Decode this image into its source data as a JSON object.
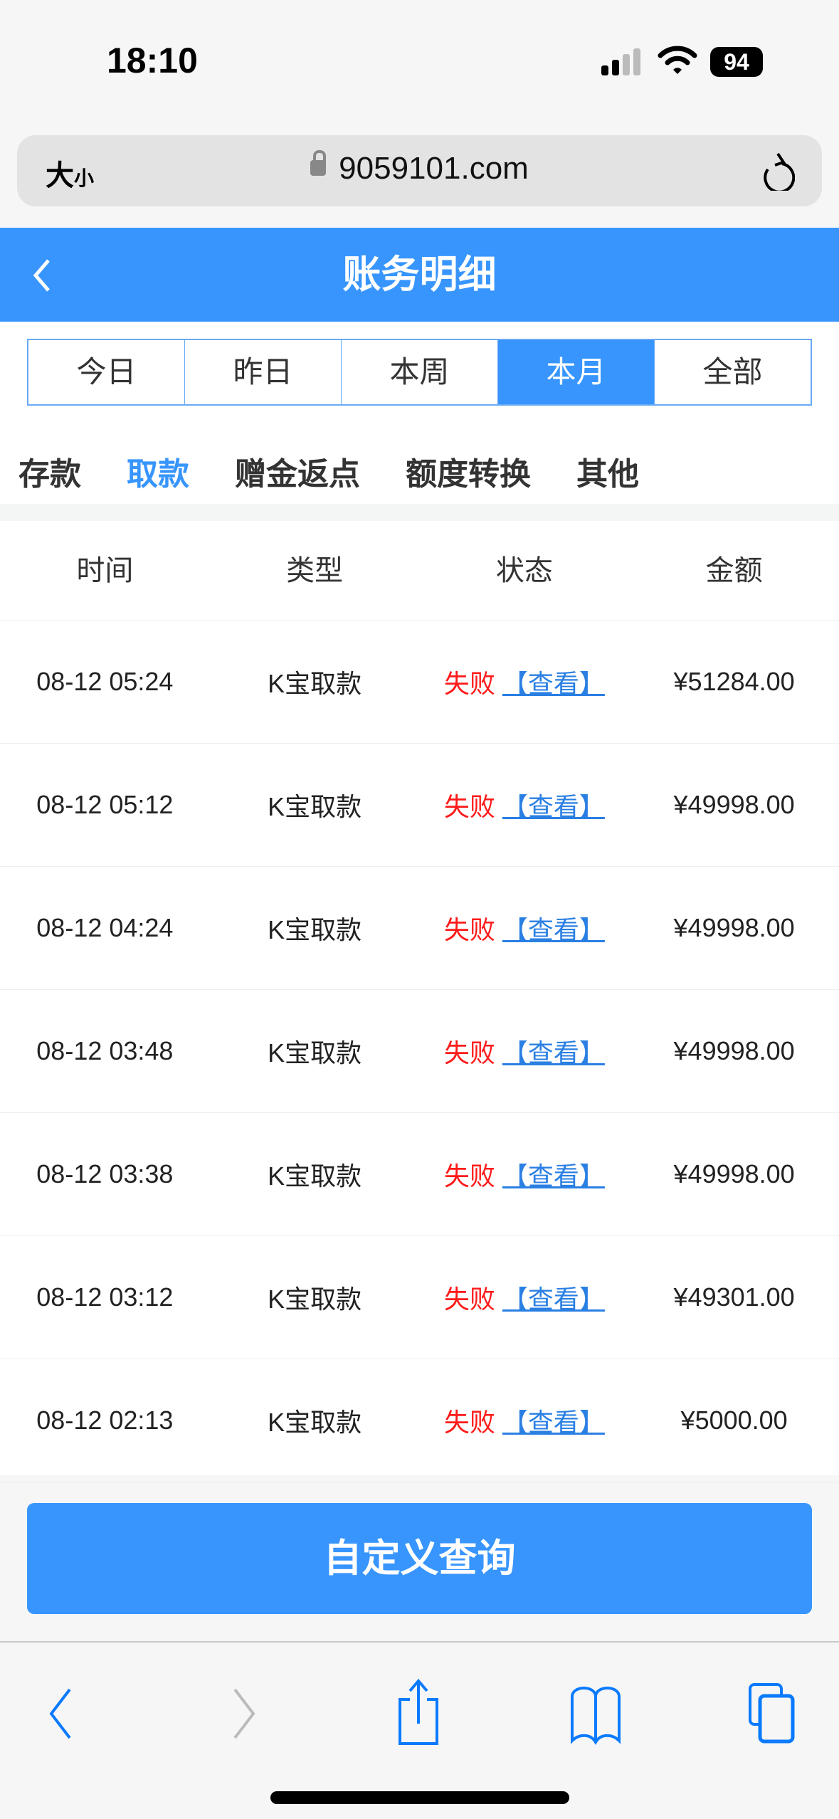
{
  "status_bar": {
    "time": "18:10",
    "battery": "94"
  },
  "browser": {
    "text_size_big": "大",
    "text_size_small": "小",
    "url": "9059101.com"
  },
  "header": {
    "title": "账务明细"
  },
  "period_tabs": [
    {
      "label": "今日"
    },
    {
      "label": "昨日"
    },
    {
      "label": "本周"
    },
    {
      "label": "本月",
      "active": true
    },
    {
      "label": "全部"
    }
  ],
  "category_tabs": [
    {
      "label": "存款"
    },
    {
      "label": "取款",
      "active": true
    },
    {
      "label": "赠金返点"
    },
    {
      "label": "额度转换"
    },
    {
      "label": "其他"
    }
  ],
  "table": {
    "headers": [
      "时间",
      "类型",
      "状态",
      "金额"
    ],
    "view_label": "【查看】",
    "rows": [
      {
        "time": "08-12 05:24",
        "type": "K宝取款",
        "status": "失败",
        "amount": "¥51284.00"
      },
      {
        "time": "08-12 05:12",
        "type": "K宝取款",
        "status": "失败",
        "amount": "¥49998.00"
      },
      {
        "time": "08-12 04:24",
        "type": "K宝取款",
        "status": "失败",
        "amount": "¥49998.00"
      },
      {
        "time": "08-12 03:48",
        "type": "K宝取款",
        "status": "失败",
        "amount": "¥49998.00"
      },
      {
        "time": "08-12 03:38",
        "type": "K宝取款",
        "status": "失败",
        "amount": "¥49998.00"
      },
      {
        "time": "08-12 03:12",
        "type": "K宝取款",
        "status": "失败",
        "amount": "¥49301.00"
      },
      {
        "time": "08-12 02:13",
        "type": "K宝取款",
        "status": "失败",
        "amount": "¥5000.00"
      }
    ]
  },
  "custom_query": {
    "label": "自定义查询"
  },
  "colors": {
    "accent": "#3795fd",
    "fail": "#ff1a1a",
    "link": "#2a7fe3"
  }
}
